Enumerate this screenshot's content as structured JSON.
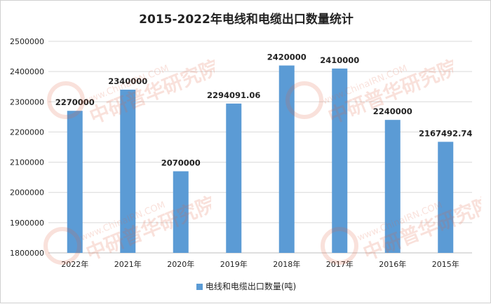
{
  "chart_data": {
    "type": "bar",
    "title": "2015-2022年电线和电缆出口数量统计",
    "categories": [
      "2022年",
      "2021年",
      "2020年",
      "2019年",
      "2018年",
      "2017年",
      "2016年",
      "2015年"
    ],
    "series": [
      {
        "name": "电线和电缆出口数量(吨)",
        "values": [
          2270000,
          2340000,
          2070000,
          2294091.06,
          2420000,
          2410000,
          2240000,
          2167492.74
        ],
        "value_labels": [
          "2270000",
          "2340000",
          "2070000",
          "2294091.06",
          "2420000",
          "2410000",
          "2240000",
          "2167492.74"
        ],
        "color": "#5b9bd5"
      }
    ],
    "ylim": [
      1800000,
      2500000
    ],
    "yticks": [
      1800000,
      1900000,
      2000000,
      2100000,
      2200000,
      2300000,
      2400000,
      2500000
    ],
    "grid": true,
    "legend_position": "bottom"
  },
  "watermark": {
    "text": "中研普华研究院",
    "url_text": "www.ChinaIRN.COM",
    "color": "#e06040"
  }
}
